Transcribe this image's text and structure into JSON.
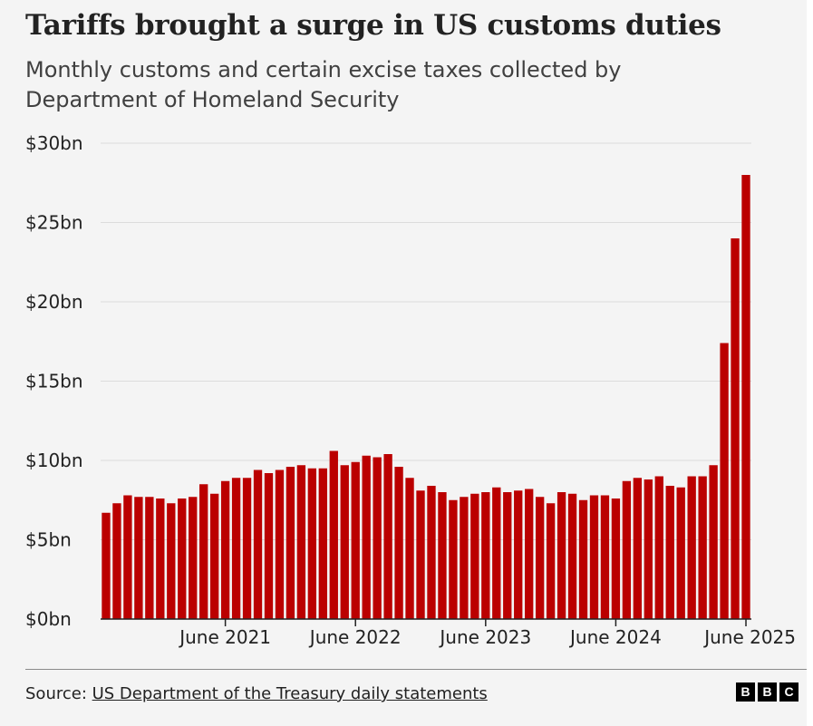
{
  "header": {
    "title": "Tariffs brought a surge in US customs duties",
    "subtitle": "Monthly customs and certain excise taxes collected by Department of Homeland Security"
  },
  "footer": {
    "source_prefix": "Source: ",
    "source_link": "US Department of the Treasury daily statements",
    "logo_letters": [
      "B",
      "B",
      "C"
    ]
  },
  "colors": {
    "bar": "#bb0000",
    "background": "#f4f4f4",
    "text": "#222222"
  },
  "chart_data": {
    "type": "bar",
    "title": "Tariffs brought a surge in US customs duties",
    "subtitle": "Monthly customs and certain excise taxes collected by Department of Homeland Security",
    "xlabel": "",
    "ylabel": "",
    "unit": "$bn",
    "ylim": [
      0,
      30
    ],
    "y_ticks": [
      0,
      5,
      10,
      15,
      20,
      25,
      30
    ],
    "y_tick_labels": [
      "$0bn",
      "$5bn",
      "$10bn",
      "$15bn",
      "$20bn",
      "$25bn",
      "$30bn"
    ],
    "grid": true,
    "x_tick_labels": [
      {
        "label": "June 2021",
        "at_index": 11
      },
      {
        "label": "June 2022",
        "at_index": 23
      },
      {
        "label": "June 2023",
        "at_index": 35
      },
      {
        "label": "June 2024",
        "at_index": 47
      },
      {
        "label": "June 2025",
        "at_index": 59
      }
    ],
    "categories": [
      "Jul 2020",
      "Aug 2020",
      "Sep 2020",
      "Oct 2020",
      "Nov 2020",
      "Dec 2020",
      "Jan 2021",
      "Feb 2021",
      "Mar 2021",
      "Apr 2021",
      "May 2021",
      "Jun 2021",
      "Jul 2021",
      "Aug 2021",
      "Sep 2021",
      "Oct 2021",
      "Nov 2021",
      "Dec 2021",
      "Jan 2022",
      "Feb 2022",
      "Mar 2022",
      "Apr 2022",
      "May 2022",
      "Jun 2022",
      "Jul 2022",
      "Aug 2022",
      "Sep 2022",
      "Oct 2022",
      "Nov 2022",
      "Dec 2022",
      "Jan 2023",
      "Feb 2023",
      "Mar 2023",
      "Apr 2023",
      "May 2023",
      "Jun 2023",
      "Jul 2023",
      "Aug 2023",
      "Sep 2023",
      "Oct 2023",
      "Nov 2023",
      "Dec 2023",
      "Jan 2024",
      "Feb 2024",
      "Mar 2024",
      "Apr 2024",
      "May 2024",
      "Jun 2024",
      "Jul 2024",
      "Aug 2024",
      "Sep 2024",
      "Oct 2024",
      "Nov 2024",
      "Dec 2024",
      "Jan 2025",
      "Feb 2025",
      "Mar 2025",
      "Apr 2025",
      "May 2025",
      "Jun 2025"
    ],
    "values": [
      6.7,
      7.3,
      7.8,
      7.7,
      7.7,
      7.6,
      7.3,
      7.6,
      7.7,
      8.5,
      7.9,
      8.7,
      8.9,
      8.9,
      9.4,
      9.2,
      9.4,
      9.6,
      9.7,
      9.5,
      9.5,
      10.6,
      9.7,
      9.9,
      10.3,
      10.2,
      10.4,
      9.6,
      8.9,
      8.1,
      8.4,
      8.0,
      7.5,
      7.7,
      7.9,
      8.0,
      8.3,
      8.0,
      8.1,
      8.2,
      7.7,
      7.3,
      8.0,
      7.9,
      7.5,
      7.8,
      7.8,
      7.6,
      8.7,
      8.9,
      8.8,
      9.0,
      8.4,
      8.3,
      9.0,
      9.0,
      9.7,
      17.4,
      24.0,
      28.0
    ]
  }
}
